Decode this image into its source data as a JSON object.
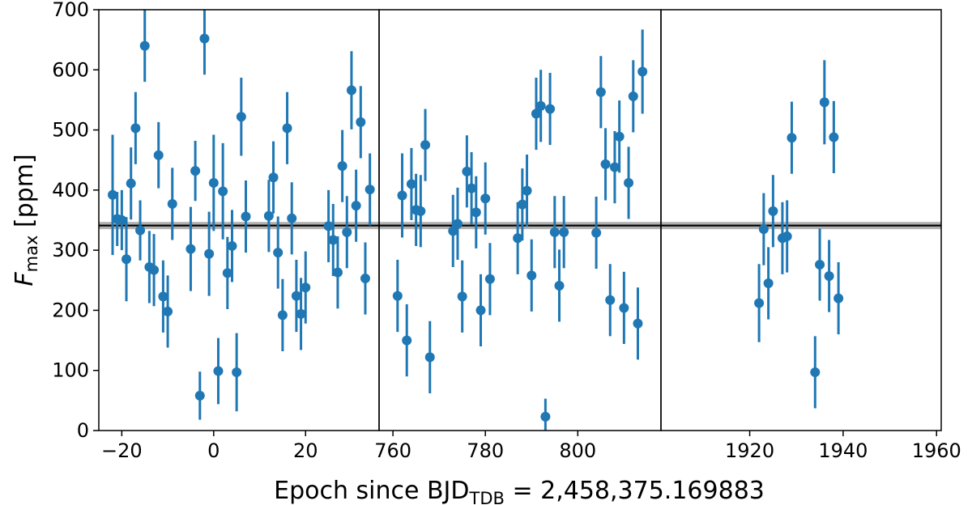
{
  "chart_data": {
    "type": "scatter",
    "ylabel": {
      "main": "F",
      "sub": "max",
      "unit": " [ppm]"
    },
    "xlabel": {
      "pre": "Epoch since BJD",
      "sub": "TDB",
      "post": " = 2,458,375.169883"
    },
    "ylim": [
      0,
      700
    ],
    "yticks": [
      "0",
      "100",
      "200",
      "300",
      "400",
      "500",
      "600",
      "700"
    ],
    "reference_line": {
      "value": 341,
      "band": [
        335,
        347
      ]
    },
    "colors": {
      "points": "#1f77b4",
      "band": "#b0b0b0",
      "line": "#000000"
    },
    "error_bars": true,
    "grid": false,
    "panels": [
      {
        "xlim": [
          -25,
          36
        ],
        "xticks": [
          -20,
          0,
          20
        ],
        "xtick_labels": [
          "−20",
          "0",
          "20"
        ],
        "points": [
          {
            "x": -22,
            "y": 392,
            "err": 100
          },
          {
            "x": -21,
            "y": 352,
            "err": 45
          },
          {
            "x": -20,
            "y": 350,
            "err": 50
          },
          {
            "x": -19,
            "y": 285,
            "err": 70
          },
          {
            "x": -18,
            "y": 411,
            "err": 60
          },
          {
            "x": -17,
            "y": 503,
            "err": 60
          },
          {
            "x": -16,
            "y": 333,
            "err": 50
          },
          {
            "x": -15,
            "y": 640,
            "err": 60
          },
          {
            "x": -14,
            "y": 272,
            "err": 60
          },
          {
            "x": -13,
            "y": 267,
            "err": 60
          },
          {
            "x": -12,
            "y": 458,
            "err": 55
          },
          {
            "x": -11,
            "y": 223,
            "err": 60
          },
          {
            "x": -10,
            "y": 198,
            "err": 60
          },
          {
            "x": -9,
            "y": 377,
            "err": 60
          },
          {
            "x": -5,
            "y": 302,
            "err": 70
          },
          {
            "x": -4,
            "y": 432,
            "err": 50
          },
          {
            "x": -3,
            "y": 58,
            "err": 40
          },
          {
            "x": -2,
            "y": 652,
            "err": 60
          },
          {
            "x": -1,
            "y": 294,
            "err": 70
          },
          {
            "x": 0,
            "y": 412,
            "err": 80
          },
          {
            "x": 1,
            "y": 99,
            "err": 55
          },
          {
            "x": 2,
            "y": 398,
            "err": 80
          },
          {
            "x": 3,
            "y": 262,
            "err": 60
          },
          {
            "x": 4,
            "y": 307,
            "err": 60
          },
          {
            "x": 5,
            "y": 97,
            "err": 65
          },
          {
            "x": 6,
            "y": 522,
            "err": 65
          },
          {
            "x": 7,
            "y": 356,
            "err": 60
          },
          {
            "x": 12,
            "y": 357,
            "err": 60
          },
          {
            "x": 13,
            "y": 421,
            "err": 60
          },
          {
            "x": 14,
            "y": 296,
            "err": 60
          },
          {
            "x": 15,
            "y": 192,
            "err": 60
          },
          {
            "x": 16,
            "y": 503,
            "err": 60
          },
          {
            "x": 17,
            "y": 353,
            "err": 60
          },
          {
            "x": 18,
            "y": 224,
            "err": 60
          },
          {
            "x": 19,
            "y": 194,
            "err": 60
          },
          {
            "x": 20,
            "y": 238,
            "err": 60
          },
          {
            "x": 25,
            "y": 340,
            "err": 60
          },
          {
            "x": 26,
            "y": 317,
            "err": 60
          },
          {
            "x": 27,
            "y": 263,
            "err": 60
          },
          {
            "x": 28,
            "y": 440,
            "err": 60
          },
          {
            "x": 29,
            "y": 330,
            "err": 60
          },
          {
            "x": 30,
            "y": 566,
            "err": 65
          },
          {
            "x": 31,
            "y": 374,
            "err": 60
          },
          {
            "x": 32,
            "y": 513,
            "err": 60
          },
          {
            "x": 33,
            "y": 253,
            "err": 60
          },
          {
            "x": 34,
            "y": 401,
            "err": 60
          }
        ]
      },
      {
        "xlim": [
          757,
          818
        ],
        "xticks": [
          760,
          780,
          800
        ],
        "xtick_labels": [
          "760",
          "780",
          "800"
        ],
        "points": [
          {
            "x": 761,
            "y": 224,
            "err": 60
          },
          {
            "x": 762,
            "y": 391,
            "err": 70
          },
          {
            "x": 763,
            "y": 150,
            "err": 60
          },
          {
            "x": 764,
            "y": 410,
            "err": 60
          },
          {
            "x": 765,
            "y": 367,
            "err": 60
          },
          {
            "x": 766,
            "y": 365,
            "err": 60
          },
          {
            "x": 767,
            "y": 475,
            "err": 60
          },
          {
            "x": 768,
            "y": 122,
            "err": 60
          },
          {
            "x": 773,
            "y": 332,
            "err": 60
          },
          {
            "x": 774,
            "y": 344,
            "err": 60
          },
          {
            "x": 775,
            "y": 223,
            "err": 60
          },
          {
            "x": 776,
            "y": 431,
            "err": 60
          },
          {
            "x": 777,
            "y": 403,
            "err": 60
          },
          {
            "x": 778,
            "y": 363,
            "err": 60
          },
          {
            "x": 779,
            "y": 200,
            "err": 60
          },
          {
            "x": 780,
            "y": 386,
            "err": 60
          },
          {
            "x": 781,
            "y": 252,
            "err": 60
          },
          {
            "x": 787,
            "y": 320,
            "err": 60
          },
          {
            "x": 788,
            "y": 376,
            "err": 60
          },
          {
            "x": 789,
            "y": 399,
            "err": 60
          },
          {
            "x": 790,
            "y": 258,
            "err": 60
          },
          {
            "x": 791,
            "y": 527,
            "err": 60
          },
          {
            "x": 792,
            "y": 540,
            "err": 60
          },
          {
            "x": 793,
            "y": 23,
            "err": 30
          },
          {
            "x": 794,
            "y": 535,
            "err": 60
          },
          {
            "x": 795,
            "y": 330,
            "err": 60
          },
          {
            "x": 796,
            "y": 241,
            "err": 60
          },
          {
            "x": 797,
            "y": 330,
            "err": 60
          },
          {
            "x": 804,
            "y": 329,
            "err": 60
          },
          {
            "x": 805,
            "y": 563,
            "err": 60
          },
          {
            "x": 806,
            "y": 443,
            "err": 60
          },
          {
            "x": 807,
            "y": 217,
            "err": 60
          },
          {
            "x": 808,
            "y": 438,
            "err": 60
          },
          {
            "x": 809,
            "y": 489,
            "err": 60
          },
          {
            "x": 810,
            "y": 204,
            "err": 60
          },
          {
            "x": 811,
            "y": 412,
            "err": 60
          },
          {
            "x": 812,
            "y": 556,
            "err": 60
          },
          {
            "x": 813,
            "y": 178,
            "err": 60
          },
          {
            "x": 814,
            "y": 597,
            "err": 70
          }
        ]
      },
      {
        "xlim": [
          1901,
          1961
        ],
        "xticks": [
          1920,
          1940,
          1960
        ],
        "xtick_labels": [
          "1920",
          "1940",
          "1960"
        ],
        "points": [
          {
            "x": 1922,
            "y": 212,
            "err": 65
          },
          {
            "x": 1923,
            "y": 335,
            "err": 60
          },
          {
            "x": 1924,
            "y": 245,
            "err": 60
          },
          {
            "x": 1925,
            "y": 365,
            "err": 60
          },
          {
            "x": 1927,
            "y": 320,
            "err": 60
          },
          {
            "x": 1928,
            "y": 323,
            "err": 60
          },
          {
            "x": 1929,
            "y": 487,
            "err": 60
          },
          {
            "x": 1934,
            "y": 97,
            "err": 60
          },
          {
            "x": 1935,
            "y": 276,
            "err": 60
          },
          {
            "x": 1936,
            "y": 546,
            "err": 70
          },
          {
            "x": 1937,
            "y": 257,
            "err": 60
          },
          {
            "x": 1938,
            "y": 488,
            "err": 60
          },
          {
            "x": 1939,
            "y": 220,
            "err": 60
          }
        ]
      }
    ]
  }
}
